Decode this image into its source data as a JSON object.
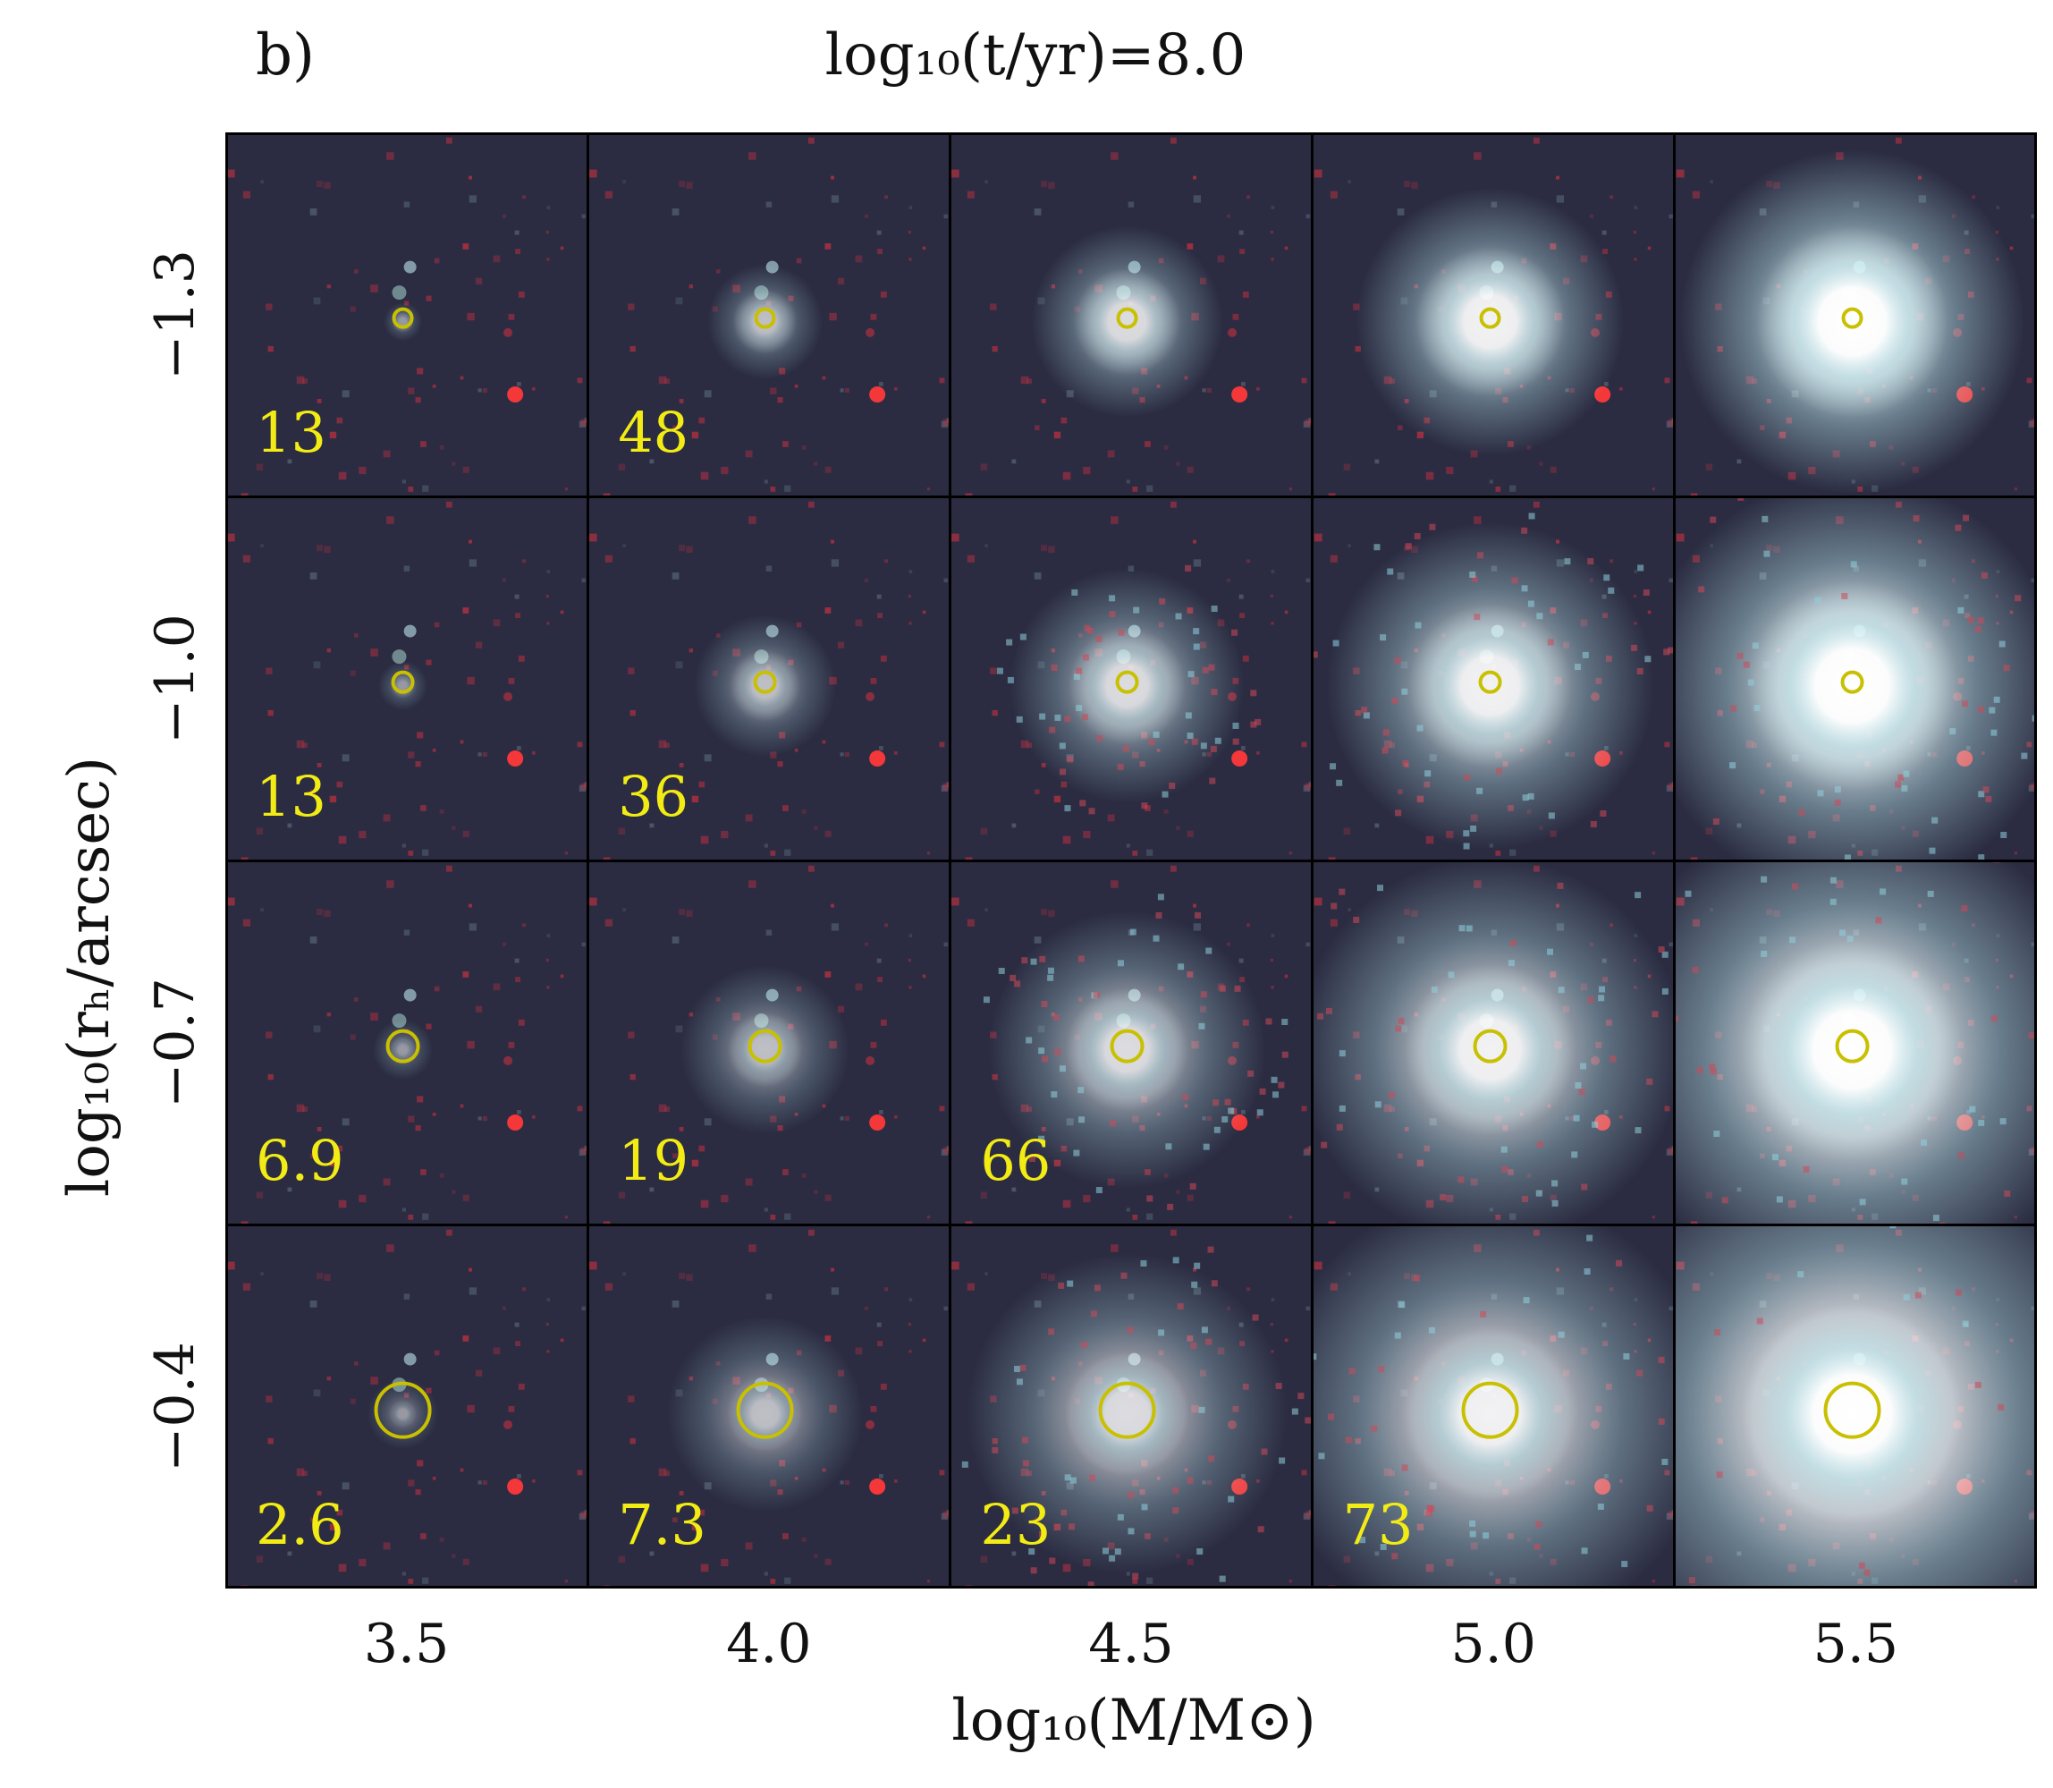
{
  "figure": {
    "panel_label": "b)",
    "title": "log₁₀(t/yr)=8.0",
    "xlabel": "log₁₀(M/M⊙)",
    "ylabel": "log₁₀(rₕ/arcsec)",
    "colors": {
      "background": "#2b2c42",
      "aperture": "#c8c000",
      "snr_text": "#f2ec14",
      "red_star": "#ff3030",
      "core": "#ffffff",
      "halo": "#bfeff5"
    }
  },
  "chart_data": {
    "type": "heatmap",
    "x_ticks": [
      "3.5",
      "4.0",
      "4.5",
      "5.0",
      "5.5"
    ],
    "y_ticks": [
      "−1.3",
      "−1.0",
      "−0.7",
      "−0.4"
    ],
    "x_values": [
      3.5,
      4.0,
      4.5,
      5.0,
      5.5
    ],
    "y_values": [
      -1.3,
      -1.0,
      -0.7,
      -0.4
    ],
    "snr_labels": [
      [
        "13",
        "48",
        "",
        "",
        ""
      ],
      [
        "13",
        "36",
        "",
        "",
        ""
      ],
      [
        "6.9",
        "19",
        "66",
        "",
        ""
      ],
      [
        "2.6",
        "7.3",
        "23",
        "73",
        ""
      ]
    ],
    "snr_values": [
      [
        13,
        48,
        null,
        null,
        null
      ],
      [
        13,
        36,
        null,
        null,
        null
      ],
      [
        6.9,
        19,
        66,
        null,
        null
      ],
      [
        2.6,
        7.3,
        23,
        73,
        null
      ]
    ]
  }
}
